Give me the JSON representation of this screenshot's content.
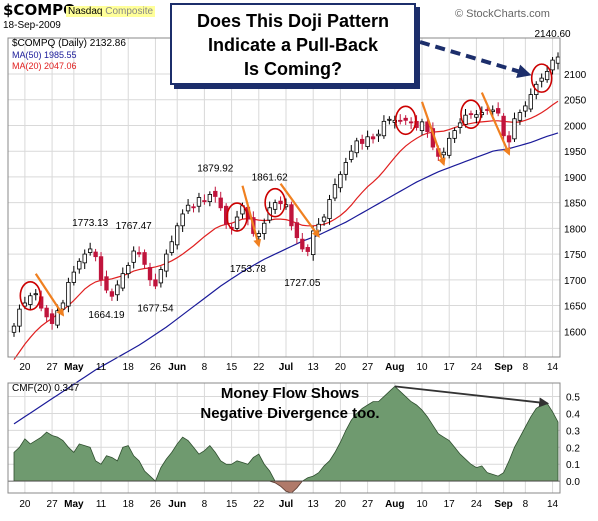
{
  "header": {
    "ticker": "$COMPQ",
    "exchange_label": "Nasdaq",
    "exchange_suffix": "Composite",
    "date": "18-Sep-2009",
    "watermark": "© StockCharts.com"
  },
  "legend": {
    "price_label": "$COMPQ (Daily) 2132.86",
    "ma50_label": "MA(50) 1985.55",
    "ma20_label": "MA(20) 2047.06",
    "cmf_label": "CMF(20) 0.347"
  },
  "callout": {
    "line1": "Does This Doji Pattern",
    "line2": "Indicate a Pull-Back",
    "line3": "Is Coming?"
  },
  "cmf_annotation": {
    "line1": "Money Flow Shows",
    "line2": "Negative Divergence too."
  },
  "colors": {
    "up": "#000000",
    "down": "#c0143c",
    "ma20": "#e02020",
    "ma50": "#1a1a99",
    "cmf_pos": "#6f9a6f",
    "cmf_neg": "#b07a6a",
    "circle": "#cc0000",
    "arrow_orange": "#f08020",
    "arrow_blue": "#1c2e6b",
    "grid": "#d9d9d9"
  },
  "chart_data": [
    {
      "type": "candlestick",
      "series_name": "$COMPQ",
      "ylim": [
        1550,
        2170
      ],
      "yticks": [
        1600,
        1650,
        1700,
        1750,
        1800,
        1850,
        1900,
        1950,
        2000,
        2050,
        2100
      ],
      "x_labels": [
        {
          "i": 2,
          "label": "20"
        },
        {
          "i": 7,
          "label": "27"
        },
        {
          "i": 11,
          "label": "May"
        },
        {
          "i": 16,
          "label": "11"
        },
        {
          "i": 21,
          "label": "18"
        },
        {
          "i": 26,
          "label": "26"
        },
        {
          "i": 30,
          "label": "Jun"
        },
        {
          "i": 35,
          "label": "8"
        },
        {
          "i": 40,
          "label": "15"
        },
        {
          "i": 45,
          "label": "22"
        },
        {
          "i": 50,
          "label": "Jul"
        },
        {
          "i": 55,
          "label": "13"
        },
        {
          "i": 60,
          "label": "20"
        },
        {
          "i": 65,
          "label": "27"
        },
        {
          "i": 70,
          "label": "Aug"
        },
        {
          "i": 75,
          "label": "10"
        },
        {
          "i": 80,
          "label": "17"
        },
        {
          "i": 85,
          "label": "24"
        },
        {
          "i": 90,
          "label": "Sep"
        },
        {
          "i": 94,
          "label": "8"
        },
        {
          "i": 99,
          "label": "14"
        }
      ],
      "price_annotations": [
        {
          "i": 14,
          "value": 1773.13,
          "label": "1773.13",
          "pos": "above"
        },
        {
          "i": 17,
          "value": 1664.19,
          "label": "1664.19",
          "pos": "below"
        },
        {
          "i": 22,
          "value": 1767.47,
          "label": "1767.47",
          "pos": "above"
        },
        {
          "i": 26,
          "value": 1677.54,
          "label": "1677.54",
          "pos": "below"
        },
        {
          "i": 37,
          "value": 1879.92,
          "label": "1879.92",
          "pos": "above"
        },
        {
          "i": 43,
          "value": 1753.78,
          "label": "1753.78",
          "pos": "below"
        },
        {
          "i": 47,
          "value": 1861.62,
          "label": "1861.62",
          "pos": "above"
        },
        {
          "i": 53,
          "value": 1727.05,
          "label": "1727.05",
          "pos": "below"
        },
        {
          "i": 99,
          "value": 2140.6,
          "label": "2140.60",
          "pos": "above"
        }
      ],
      "doji_circles": [
        3,
        41,
        48,
        72,
        84,
        97
      ],
      "pullback_arrows": [
        [
          4,
          9
        ],
        [
          42,
          45
        ],
        [
          49,
          56
        ],
        [
          75,
          79
        ],
        [
          86,
          91
        ]
      ],
      "ohlc_close": [
        1610,
        1643,
        1655,
        1669,
        1673,
        1645,
        1628,
        1615,
        1640,
        1655,
        1695,
        1715,
        1736,
        1750,
        1760,
        1745,
        1700,
        1680,
        1668,
        1690,
        1712,
        1728,
        1756,
        1750,
        1730,
        1700,
        1688,
        1720,
        1750,
        1774,
        1805,
        1828,
        1845,
        1840,
        1860,
        1852,
        1866,
        1862,
        1840,
        1808,
        1800,
        1822,
        1844,
        1818,
        1790,
        1790,
        1810,
        1840,
        1850,
        1848,
        1846,
        1805,
        1782,
        1760,
        1755,
        1795,
        1808,
        1822,
        1856,
        1885,
        1905,
        1928,
        1950,
        1970,
        1965,
        1978,
        1974,
        1983,
        2008,
        2012,
        2010,
        2008,
        2010,
        2005,
        1996,
        2007,
        1988,
        1958,
        1940,
        1948,
        1975,
        1990,
        2005,
        2020,
        2022,
        2021,
        2025,
        2030,
        2030,
        2024,
        1980,
        1968,
        2013,
        2025,
        2038,
        2060,
        2080,
        2092,
        2105,
        2127,
        2133
      ],
      "ma20": [
        1545,
        1560,
        1575,
        1588,
        1600,
        1610,
        1618,
        1625,
        1633,
        1641,
        1650,
        1660,
        1671,
        1682,
        1690,
        1696,
        1699,
        1700,
        1702,
        1705,
        1708,
        1712,
        1717,
        1720,
        1722,
        1723,
        1725,
        1728,
        1732,
        1737,
        1743,
        1750,
        1758,
        1766,
        1775,
        1784,
        1792,
        1800,
        1805,
        1808,
        1810,
        1814,
        1818,
        1819,
        1818,
        1816,
        1815,
        1816,
        1818,
        1818,
        1817,
        1814,
        1810,
        1806,
        1805,
        1805,
        1806,
        1808,
        1812,
        1818,
        1825,
        1834,
        1845,
        1858,
        1870,
        1881,
        1890,
        1900,
        1912,
        1925,
        1938,
        1950,
        1960,
        1968,
        1975,
        1981,
        1985,
        1987,
        1988,
        1989,
        1992,
        1996,
        1999,
        2002,
        2004,
        2006,
        2007,
        2008,
        2009,
        2009,
        2008,
        2007,
        2006,
        2007,
        2010,
        2014,
        2019,
        2025,
        2032,
        2040,
        2047
      ],
      "ma50": [
        1420,
        1427,
        1434,
        1441,
        1448,
        1455,
        1462,
        1469,
        1476,
        1483,
        1490,
        1497,
        1504,
        1511,
        1518,
        1525,
        1531,
        1537,
        1543,
        1549,
        1555,
        1561,
        1567,
        1573,
        1580,
        1587,
        1594,
        1601,
        1608,
        1616,
        1624,
        1632,
        1640,
        1648,
        1656,
        1664,
        1672,
        1680,
        1688,
        1695,
        1702,
        1709,
        1716,
        1722,
        1728,
        1734,
        1740,
        1745,
        1750,
        1755,
        1760,
        1765,
        1770,
        1775,
        1779,
        1783,
        1787,
        1792,
        1797,
        1802,
        1807,
        1812,
        1818,
        1824,
        1830,
        1836,
        1842,
        1848,
        1854,
        1860,
        1866,
        1872,
        1878,
        1884,
        1890,
        1895,
        1900,
        1905,
        1910,
        1914,
        1918,
        1922,
        1926,
        1930,
        1934,
        1938,
        1942,
        1946,
        1950,
        1952,
        1953,
        1955,
        1958,
        1961,
        1964,
        1967,
        1971,
        1975,
        1979,
        1982,
        1985.55
      ]
    },
    {
      "type": "area",
      "series_name": "CMF(20)",
      "ylim": [
        -0.07,
        0.58
      ],
      "yticks": [
        0.0,
        0.1,
        0.2,
        0.3,
        0.4,
        0.5
      ],
      "values": [
        0.17,
        0.2,
        0.25,
        0.22,
        0.24,
        0.26,
        0.29,
        0.27,
        0.26,
        0.24,
        0.2,
        0.17,
        0.22,
        0.21,
        0.2,
        0.12,
        0.1,
        0.15,
        0.14,
        0.12,
        0.2,
        0.21,
        0.15,
        0.12,
        0.06,
        0.03,
        0.0,
        0.08,
        0.13,
        0.17,
        0.22,
        0.26,
        0.24,
        0.2,
        0.16,
        0.18,
        0.21,
        0.17,
        0.12,
        0.1,
        0.1,
        0.12,
        0.11,
        0.1,
        0.14,
        0.16,
        0.1,
        0.06,
        -0.01,
        -0.03,
        -0.06,
        -0.07,
        -0.04,
        0.0,
        0.02,
        0.03,
        0.05,
        0.09,
        0.12,
        0.17,
        0.23,
        0.3,
        0.36,
        0.4,
        0.43,
        0.45,
        0.47,
        0.47,
        0.5,
        0.53,
        0.56,
        0.53,
        0.5,
        0.47,
        0.45,
        0.42,
        0.38,
        0.33,
        0.28,
        0.26,
        0.24,
        0.2,
        0.16,
        0.13,
        0.1,
        0.08,
        0.09,
        0.05,
        0.04,
        0.03,
        0.05,
        0.12,
        0.2,
        0.26,
        0.32,
        0.38,
        0.43,
        0.45,
        0.46,
        0.41,
        0.35
      ]
    }
  ]
}
